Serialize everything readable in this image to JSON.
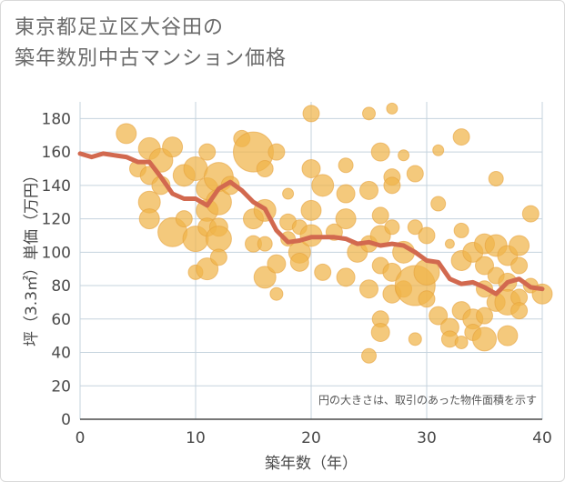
{
  "title_line1": "東京都足立区大谷田の",
  "title_line2": "築年数別中古マンション価格",
  "note": "円の大きさは、取引のあった物件面積を示す",
  "colors": {
    "bubble": "#f0b44a",
    "bubble_edge": "#e6a23c",
    "line": "#d2694f",
    "grid": "#c5d3de",
    "axis": "#4a4a4a"
  },
  "chart_data": {
    "type": "scatter",
    "xlabel": "築年数（年）",
    "ylabel": "坪（3.3㎡）単価（万円）",
    "xlim": [
      0,
      40
    ],
    "ylim": [
      0,
      190
    ],
    "xticks": [
      0,
      10,
      20,
      30,
      40
    ],
    "yticks": [
      0,
      20,
      40,
      60,
      80,
      100,
      120,
      140,
      160,
      180
    ],
    "grid": true,
    "bubbles": [
      {
        "x": 4,
        "y": 171,
        "s": 11
      },
      {
        "x": 5,
        "y": 150,
        "s": 9
      },
      {
        "x": 6,
        "y": 162,
        "s": 12
      },
      {
        "x": 6,
        "y": 146,
        "s": 10
      },
      {
        "x": 6,
        "y": 130,
        "s": 12
      },
      {
        "x": 6,
        "y": 120,
        "s": 11
      },
      {
        "x": 7,
        "y": 155,
        "s": 13
      },
      {
        "x": 7,
        "y": 140,
        "s": 10
      },
      {
        "x": 8,
        "y": 163,
        "s": 11
      },
      {
        "x": 8,
        "y": 112,
        "s": 16
      },
      {
        "x": 9,
        "y": 146,
        "s": 12
      },
      {
        "x": 9,
        "y": 120,
        "s": 9
      },
      {
        "x": 10,
        "y": 150,
        "s": 13
      },
      {
        "x": 10,
        "y": 108,
        "s": 14
      },
      {
        "x": 10,
        "y": 88,
        "s": 8
      },
      {
        "x": 11,
        "y": 160,
        "s": 9
      },
      {
        "x": 11,
        "y": 138,
        "s": 12
      },
      {
        "x": 11,
        "y": 125,
        "s": 12
      },
      {
        "x": 11,
        "y": 115,
        "s": 10
      },
      {
        "x": 11,
        "y": 90,
        "s": 12
      },
      {
        "x": 12,
        "y": 145,
        "s": 16
      },
      {
        "x": 12,
        "y": 130,
        "s": 14
      },
      {
        "x": 12,
        "y": 115,
        "s": 10
      },
      {
        "x": 12,
        "y": 108,
        "s": 14
      },
      {
        "x": 12,
        "y": 97,
        "s": 9
      },
      {
        "x": 13,
        "y": 140,
        "s": 10
      },
      {
        "x": 14,
        "y": 168,
        "s": 9
      },
      {
        "x": 15,
        "y": 160,
        "s": 22
      },
      {
        "x": 15,
        "y": 120,
        "s": 11
      },
      {
        "x": 15,
        "y": 105,
        "s": 9
      },
      {
        "x": 16,
        "y": 150,
        "s": 9
      },
      {
        "x": 16,
        "y": 125,
        "s": 12
      },
      {
        "x": 16,
        "y": 105,
        "s": 8
      },
      {
        "x": 16,
        "y": 85,
        "s": 12
      },
      {
        "x": 17,
        "y": 160,
        "s": 9
      },
      {
        "x": 17,
        "y": 93,
        "s": 10
      },
      {
        "x": 17,
        "y": 75,
        "s": 7
      },
      {
        "x": 18,
        "y": 135,
        "s": 6
      },
      {
        "x": 18,
        "y": 118,
        "s": 9
      },
      {
        "x": 18,
        "y": 108,
        "s": 8
      },
      {
        "x": 19,
        "y": 115,
        "s": 8
      },
      {
        "x": 19,
        "y": 100,
        "s": 12
      },
      {
        "x": 19,
        "y": 94,
        "s": 10
      },
      {
        "x": 20,
        "y": 183,
        "s": 9
      },
      {
        "x": 20,
        "y": 150,
        "s": 10
      },
      {
        "x": 20,
        "y": 125,
        "s": 11
      },
      {
        "x": 20,
        "y": 110,
        "s": 12
      },
      {
        "x": 21,
        "y": 140,
        "s": 12
      },
      {
        "x": 21,
        "y": 88,
        "s": 9
      },
      {
        "x": 22,
        "y": 112,
        "s": 9
      },
      {
        "x": 23,
        "y": 152,
        "s": 8
      },
      {
        "x": 23,
        "y": 135,
        "s": 10
      },
      {
        "x": 23,
        "y": 120,
        "s": 11
      },
      {
        "x": 23,
        "y": 85,
        "s": 10
      },
      {
        "x": 24,
        "y": 100,
        "s": 11
      },
      {
        "x": 25,
        "y": 183,
        "s": 7
      },
      {
        "x": 25,
        "y": 137,
        "s": 10
      },
      {
        "x": 25,
        "y": 105,
        "s": 9
      },
      {
        "x": 25,
        "y": 78,
        "s": 10
      },
      {
        "x": 25,
        "y": 38,
        "s": 8
      },
      {
        "x": 26,
        "y": 160,
        "s": 10
      },
      {
        "x": 26,
        "y": 122,
        "s": 9
      },
      {
        "x": 26,
        "y": 110,
        "s": 11
      },
      {
        "x": 26,
        "y": 92,
        "s": 9
      },
      {
        "x": 26,
        "y": 60,
        "s": 9
      },
      {
        "x": 26,
        "y": 52,
        "s": 10
      },
      {
        "x": 27,
        "y": 186,
        "s": 6
      },
      {
        "x": 27,
        "y": 145,
        "s": 9
      },
      {
        "x": 27,
        "y": 140,
        "s": 9
      },
      {
        "x": 27,
        "y": 115,
        "s": 8
      },
      {
        "x": 27,
        "y": 88,
        "s": 10
      },
      {
        "x": 27,
        "y": 75,
        "s": 10
      },
      {
        "x": 28,
        "y": 158,
        "s": 6
      },
      {
        "x": 28,
        "y": 100,
        "s": 12
      },
      {
        "x": 28,
        "y": 78,
        "s": 9
      },
      {
        "x": 29,
        "y": 147,
        "s": 9
      },
      {
        "x": 29,
        "y": 115,
        "s": 8
      },
      {
        "x": 29,
        "y": 80,
        "s": 22
      },
      {
        "x": 29,
        "y": 48,
        "s": 7
      },
      {
        "x": 30,
        "y": 110,
        "s": 9
      },
      {
        "x": 30,
        "y": 88,
        "s": 14
      },
      {
        "x": 30,
        "y": 72,
        "s": 9
      },
      {
        "x": 31,
        "y": 161,
        "s": 6
      },
      {
        "x": 31,
        "y": 129,
        "s": 8
      },
      {
        "x": 31,
        "y": 62,
        "s": 10
      },
      {
        "x": 32,
        "y": 105,
        "s": 5
      },
      {
        "x": 32,
        "y": 55,
        "s": 10
      },
      {
        "x": 32,
        "y": 48,
        "s": 9
      },
      {
        "x": 33,
        "y": 169,
        "s": 9
      },
      {
        "x": 33,
        "y": 113,
        "s": 8
      },
      {
        "x": 33,
        "y": 95,
        "s": 11
      },
      {
        "x": 33,
        "y": 65,
        "s": 10
      },
      {
        "x": 33,
        "y": 46,
        "s": 7
      },
      {
        "x": 34,
        "y": 100,
        "s": 11
      },
      {
        "x": 34,
        "y": 60,
        "s": 11
      },
      {
        "x": 34,
        "y": 52,
        "s": 9
      },
      {
        "x": 35,
        "y": 105,
        "s": 11
      },
      {
        "x": 35,
        "y": 92,
        "s": 10
      },
      {
        "x": 35,
        "y": 78,
        "s": 9
      },
      {
        "x": 35,
        "y": 62,
        "s": 9
      },
      {
        "x": 35,
        "y": 48,
        "s": 13
      },
      {
        "x": 36,
        "y": 144,
        "s": 8
      },
      {
        "x": 36,
        "y": 104,
        "s": 12
      },
      {
        "x": 36,
        "y": 86,
        "s": 9
      },
      {
        "x": 36,
        "y": 70,
        "s": 10
      },
      {
        "x": 37,
        "y": 98,
        "s": 11
      },
      {
        "x": 37,
        "y": 82,
        "s": 10
      },
      {
        "x": 37,
        "y": 70,
        "s": 14
      },
      {
        "x": 37,
        "y": 50,
        "s": 11
      },
      {
        "x": 38,
        "y": 104,
        "s": 11
      },
      {
        "x": 38,
        "y": 92,
        "s": 9
      },
      {
        "x": 38,
        "y": 73,
        "s": 9
      },
      {
        "x": 38,
        "y": 65,
        "s": 9
      },
      {
        "x": 39,
        "y": 123,
        "s": 9
      },
      {
        "x": 39,
        "y": 80,
        "s": 8
      },
      {
        "x": 40,
        "y": 75,
        "s": 11
      }
    ],
    "trend": {
      "name": "",
      "x": [
        0,
        1,
        2,
        3,
        4,
        5,
        6,
        7,
        8,
        9,
        10,
        11,
        12,
        13,
        14,
        15,
        16,
        17,
        18,
        19,
        20,
        21,
        22,
        23,
        24,
        25,
        26,
        27,
        28,
        29,
        30,
        31,
        32,
        33,
        34,
        35,
        36,
        37,
        38,
        39,
        40
      ],
      "y": [
        159,
        157,
        159,
        158,
        157,
        154,
        154,
        145,
        135,
        132,
        132,
        128,
        138,
        142,
        137,
        130,
        126,
        113,
        106,
        107,
        109,
        109,
        109,
        108,
        105,
        106,
        104,
        105,
        104,
        100,
        95,
        94,
        84,
        81,
        82,
        79,
        75,
        82,
        84,
        79,
        78
      ]
    }
  }
}
